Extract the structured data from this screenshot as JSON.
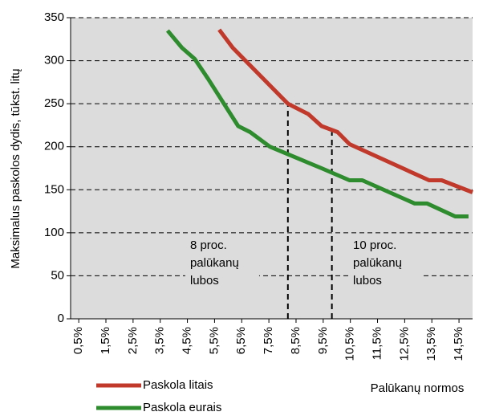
{
  "chart_data": {
    "type": "line",
    "y_label": "Maksimalus paskolos dydis, tūkst. litų",
    "x_label": "Palūkanų normos",
    "xlim": [
      0.2,
      15.0
    ],
    "xticks": [
      {
        "value": 0.5,
        "label": "0,5%"
      },
      {
        "value": 1.5,
        "label": "1,5%"
      },
      {
        "value": 2.5,
        "label": "2,5%"
      },
      {
        "value": 3.5,
        "label": "3,5%"
      },
      {
        "value": 4.5,
        "label": "4,5%"
      },
      {
        "value": 5.5,
        "label": "5,5%"
      },
      {
        "value": 6.5,
        "label": "6,5%"
      },
      {
        "value": 7.5,
        "label": "7,5%"
      },
      {
        "value": 8.5,
        "label": "8,5%"
      },
      {
        "value": 9.5,
        "label": "9,5%"
      },
      {
        "value": 10.5,
        "label": "10,5%"
      },
      {
        "value": 11.5,
        "label": "11,5%"
      },
      {
        "value": 12.5,
        "label": "12,5%"
      },
      {
        "value": 13.5,
        "label": "13,5%"
      },
      {
        "value": 14.5,
        "label": "14,5%"
      }
    ],
    "ylim": [
      0,
      350
    ],
    "yticks": [
      0,
      50,
      100,
      150,
      200,
      250,
      300,
      350
    ],
    "grid": true,
    "legend": "bottom-left",
    "series": [
      {
        "name": "Paskola litais",
        "color": "#c0392b",
        "x": [
          5.67,
          6.17,
          8.2,
          8.95,
          9.44,
          10.03,
          10.47,
          13.4,
          13.86,
          15.0
        ],
        "values": [
          336,
          315,
          250,
          238,
          224,
          217,
          203,
          161,
          161,
          147
        ]
      },
      {
        "name": "Paskola eurais",
        "color": "#2e8b2e",
        "x": [
          3.77,
          4.3,
          4.77,
          5.26,
          6.37,
          6.81,
          7.54,
          8.22,
          9.44,
          10.47,
          10.94,
          12.87,
          13.33,
          14.36,
          14.85
        ],
        "values": [
          335,
          315,
          302,
          279,
          224,
          217,
          200,
          191,
          175,
          161,
          161,
          134,
          134,
          119,
          119
        ]
      }
    ],
    "vlines": [
      8.2,
      9.82
    ],
    "annotations": [
      {
        "x": 4.6,
        "y": 85,
        "lines": [
          "8 proc.",
          "palūkanų",
          "lubos"
        ]
      },
      {
        "x": 10.6,
        "y": 85,
        "lines": [
          "10 proc.",
          "palūkanų",
          "lubos"
        ]
      }
    ]
  }
}
